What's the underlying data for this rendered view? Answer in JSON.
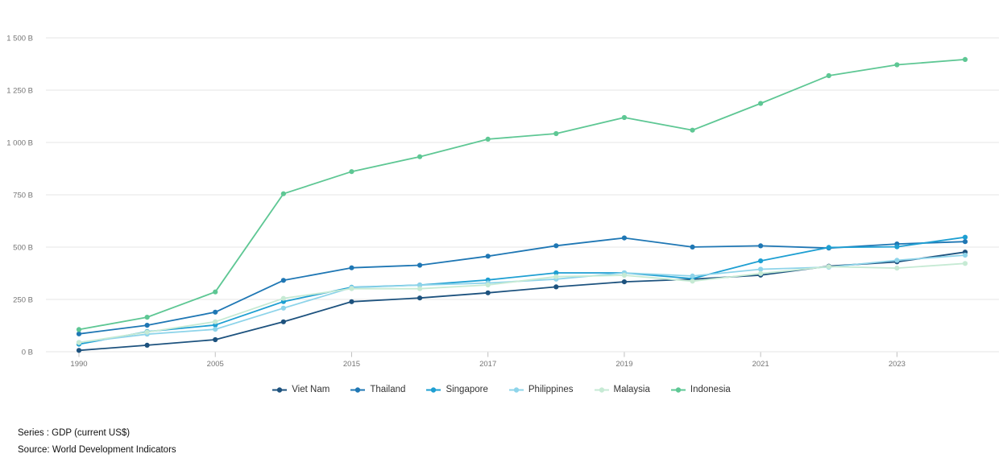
{
  "footer": {
    "series": "Series : GDP (current US$)",
    "source": "Source: World Development Indicators"
  },
  "colors": {
    "background": "#ffffff",
    "grid": "#e6e6e6",
    "tick_mark": "#c0c0c0",
    "tick_label": "#757575",
    "legend_text": "#333333",
    "footer_text": "#111111"
  },
  "chart_data": {
    "type": "line",
    "title": "",
    "xlabel": "",
    "ylabel": "",
    "unit": "billions of current US$",
    "grid": "horizontal",
    "legend_position": "bottom",
    "ylim": [
      0,
      1500
    ],
    "y_tick_values": [
      0,
      250,
      500,
      750,
      1000,
      1250,
      1500
    ],
    "y_tick_labels": [
      "0 B",
      "250 B",
      "500 B",
      "750 B",
      "1 000 B",
      "1 250 B",
      "1 500 B"
    ],
    "x": [
      1990,
      2000,
      2005,
      2010,
      2015,
      2016,
      2017,
      2018,
      2019,
      2020,
      2021,
      2022,
      2023,
      2024
    ],
    "x_tick_indices": [
      0,
      2,
      4,
      6,
      8,
      10,
      12
    ],
    "x_tick_labels": [
      "1990",
      "2005",
      "2015",
      "2017",
      "2019",
      "2021",
      "2023"
    ],
    "series": [
      {
        "name": "Viet Nam",
        "color": "#1d527e",
        "values": [
          6.5,
          31.2,
          57.6,
          143.2,
          239.3,
          257.1,
          281.4,
          310.1,
          334.4,
          346.6,
          366.1,
          408.8,
          429.7,
          476.3
        ]
      },
      {
        "name": "Thailand",
        "color": "#1f77b4",
        "values": [
          85.3,
          126.4,
          189.3,
          341.1,
          401.3,
          413.4,
          456.4,
          506.6,
          544.0,
          500.5,
          506.3,
          495.4,
          515.0,
          526.0
        ]
      },
      {
        "name": "Singapore",
        "color": "#1e9fd2",
        "values": [
          36.2,
          96.1,
          127.8,
          239.8,
          308.0,
          318.8,
          343.2,
          376.9,
          376.9,
          349.5,
          434.1,
          498.5,
          501.4,
          547.4
        ]
      },
      {
        "name": "Philippines",
        "color": "#8ed4ea",
        "values": [
          44.3,
          83.7,
          107.4,
          208.4,
          306.4,
          318.6,
          328.5,
          346.8,
          376.8,
          361.8,
          394.1,
          404.3,
          437.1,
          461.6
        ]
      },
      {
        "name": "Malaysia",
        "color": "#c6ead4",
        "values": [
          44.0,
          93.8,
          143.5,
          255.0,
          301.4,
          301.3,
          319.1,
          358.8,
          365.2,
          337.3,
          373.8,
          407.0,
          399.7,
          422.1
        ]
      },
      {
        "name": "Indonesia",
        "color": "#5ec794",
        "values": [
          106.1,
          165.0,
          285.9,
          755.1,
          860.9,
          931.9,
          1015.6,
          1042.3,
          1119.1,
          1058.7,
          1186.5,
          1319.1,
          1371.2,
          1396.7
        ]
      }
    ]
  }
}
